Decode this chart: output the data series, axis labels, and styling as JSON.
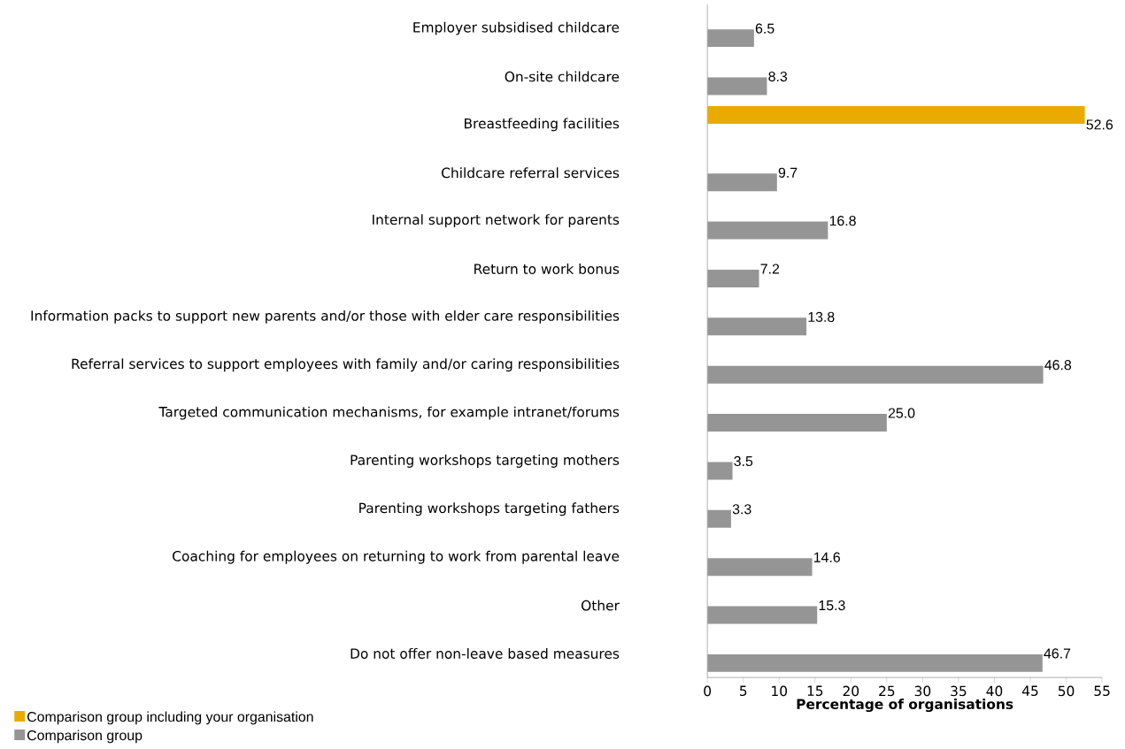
{
  "chart_data": {
    "type": "bar",
    "orientation": "horizontal",
    "xlabel": "Percentage of organisations",
    "categories": [
      "Employer subsidised childcare",
      "On-site childcare",
      "Breastfeeding facilities",
      "Childcare referral services",
      "Internal support network for parents",
      "Return to work bonus",
      "Information packs to support new parents and/or those with elder care responsibilities",
      "Referral services to support employees with family and/or caring responsibilities",
      "Targeted communication mechanisms, for example intranet/forums",
      "Parenting workshops targeting mothers",
      "Parenting workshops targeting fathers",
      "Coaching for employees on returning to work from parental leave",
      "Other",
      "Do not offer non-leave based measures"
    ],
    "series": [
      {
        "name": "Comparison group including your organisation",
        "color": "#eaab00",
        "values": [
          null,
          null,
          52.6,
          null,
          null,
          null,
          null,
          null,
          null,
          null,
          null,
          null,
          null,
          null
        ],
        "value_labels": [
          null,
          null,
          "52.6",
          null,
          null,
          null,
          null,
          null,
          null,
          null,
          null,
          null,
          null,
          null
        ]
      },
      {
        "name": "Comparison group",
        "color": "#959595",
        "values": [
          6.5,
          8.3,
          null,
          9.7,
          16.8,
          7.2,
          13.8,
          46.8,
          25.0,
          3.5,
          3.3,
          14.6,
          15.3,
          46.7
        ],
        "value_labels": [
          "6.5",
          "8.3",
          null,
          "9.7",
          "16.8",
          "7.2",
          "13.8",
          "46.8",
          "25.0",
          "3.5",
          "3.3",
          "14.6",
          "15.3",
          "46.7"
        ]
      }
    ],
    "xlim": [
      0,
      55
    ],
    "xticks": [
      0,
      5,
      10,
      15,
      20,
      25,
      30,
      35,
      40,
      45,
      50,
      55
    ],
    "grid": false,
    "legend": "bottom left"
  }
}
